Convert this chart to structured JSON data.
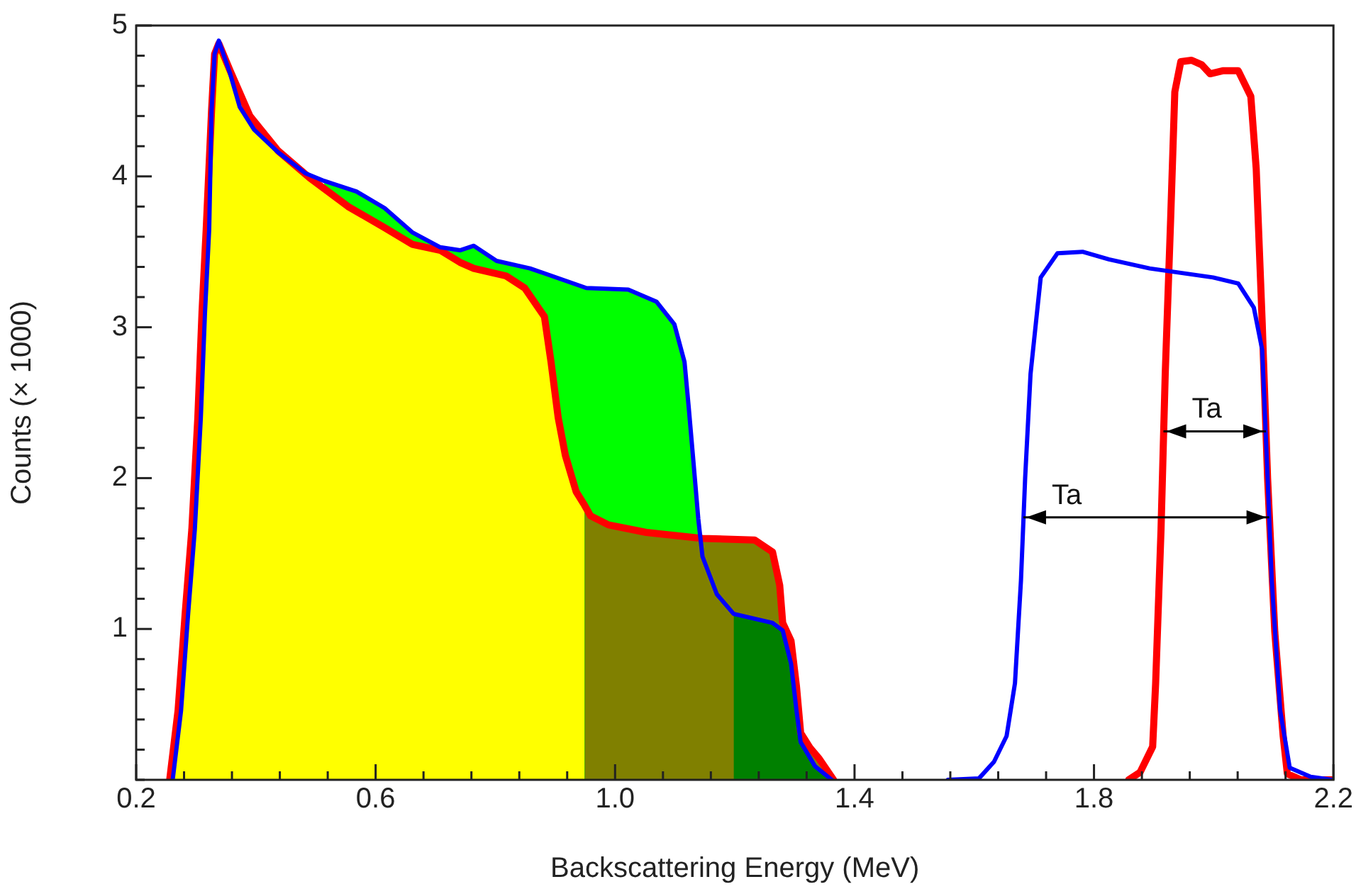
{
  "chart_data": {
    "type": "line",
    "xlabel": "Backscattering Energy (MeV)",
    "ylabel": "Counts (× 1000)",
    "xlim": [
      0.2,
      2.2
    ],
    "ylim": [
      0,
      5
    ],
    "xticks": [
      0.2,
      {
        "value": 0.28,
        "label": null
      },
      {
        "value": 0.36,
        "label": null
      },
      {
        "value": 0.44,
        "label": null
      },
      {
        "value": 0.52,
        "label": null
      },
      0.6,
      {
        "value": 0.68,
        "label": null
      },
      {
        "value": 0.76,
        "label": null
      },
      {
        "value": 0.84,
        "label": null
      },
      {
        "value": 0.92,
        "label": null
      },
      {
        "value": 1.0,
        "label": "1.0"
      },
      {
        "value": 1.08,
        "label": null
      },
      {
        "value": 1.16,
        "label": null
      },
      {
        "value": 1.24,
        "label": null
      },
      {
        "value": 1.32,
        "label": null
      },
      1.4,
      {
        "value": 1.48,
        "label": null
      },
      {
        "value": 1.56,
        "label": null
      },
      {
        "value": 1.64,
        "label": null
      },
      {
        "value": 1.72,
        "label": null
      },
      1.8,
      {
        "value": 1.88,
        "label": null
      },
      {
        "value": 1.96,
        "label": null
      },
      {
        "value": 2.04,
        "label": null
      },
      {
        "value": 2.12,
        "label": null
      },
      2.2
    ],
    "yticks": [
      {
        "value": 0,
        "label": null
      },
      {
        "value": 0.2,
        "label": null
      },
      {
        "value": 0.4,
        "label": null
      },
      {
        "value": 0.6,
        "label": null
      },
      {
        "value": 0.8,
        "label": null
      },
      1,
      {
        "value": 1.2,
        "label": null
      },
      {
        "value": 1.4,
        "label": null
      },
      {
        "value": 1.6,
        "label": null
      },
      {
        "value": 1.8,
        "label": null
      },
      2,
      {
        "value": 2.2,
        "label": null
      },
      {
        "value": 2.4,
        "label": null
      },
      {
        "value": 2.6,
        "label": null
      },
      {
        "value": 2.8,
        "label": null
      },
      3,
      {
        "value": 3.2,
        "label": null
      },
      {
        "value": 3.4,
        "label": null
      },
      {
        "value": 3.6,
        "label": null
      },
      {
        "value": 3.8,
        "label": null
      },
      4,
      {
        "value": 4.2,
        "label": null
      },
      {
        "value": 4.4,
        "label": null
      },
      {
        "value": 4.6,
        "label": null
      },
      {
        "value": 4.8,
        "label": null
      },
      5
    ],
    "grid": false,
    "legend": false,
    "marker": "none",
    "series": [
      {
        "type": "area",
        "color": "#00ff00",
        "x": [
          0.514,
          0.568,
          0.615,
          0.661,
          0.708,
          0.741,
          0.764,
          0.802,
          0.858,
          0.952,
          1.022,
          1.069,
          1.099,
          1.116,
          1.123,
          1.13,
          1.139
        ],
        "values": [
          3.97,
          3.9,
          3.79,
          3.63,
          3.53,
          3.51,
          3.54,
          3.44,
          3.39,
          3.26,
          3.25,
          3.17,
          3.02,
          2.77,
          2.47,
          2.15,
          1.73
        ]
      },
      {
        "type": "area",
        "color": "#ffff00",
        "x": [
          0.256,
          0.27,
          0.282,
          0.293,
          0.303,
          0.31,
          0.317,
          0.326,
          0.331,
          0.338,
          0.357,
          0.39,
          0.437,
          0.49,
          0.554,
          0.615,
          0.661,
          0.708,
          0.741,
          0.764,
          0.818,
          0.849,
          0.882,
          0.893,
          0.905,
          0.917,
          0.935,
          0.949
        ],
        "values": [
          0,
          0.46,
          1.11,
          1.66,
          2.4,
          3.1,
          3.65,
          4.44,
          4.81,
          4.88,
          4.7,
          4.4,
          4.17,
          3.99,
          3.8,
          3.66,
          3.55,
          3.51,
          3.43,
          3.39,
          3.34,
          3.26,
          3.07,
          2.77,
          2.4,
          2.15,
          1.91,
          1.82
        ]
      },
      {
        "type": "area",
        "color": "#808000",
        "x": [
          0.949,
          0.959,
          0.989,
          1.052,
          1.146,
          1.233,
          1.263,
          1.275,
          1.28,
          1.294,
          1.303,
          1.31,
          1.326,
          1.341,
          1.365
        ],
        "values": [
          1.82,
          1.75,
          1.69,
          1.64,
          1.6,
          1.59,
          1.51,
          1.29,
          1.04,
          0.92,
          0.62,
          0.31,
          0.21,
          0.14,
          0
        ]
      },
      {
        "type": "area",
        "color": "#008000",
        "x": [
          1.198,
          1.263,
          1.28,
          1.294,
          1.303,
          1.31,
          1.334,
          1.362
        ],
        "values": [
          1.1,
          1.04,
          0.99,
          0.77,
          0.46,
          0.25,
          0.09,
          0
        ]
      },
      {
        "type": "line",
        "color": "#ff0000",
        "x": [
          0.256,
          0.27,
          0.282,
          0.293,
          0.303,
          0.31,
          0.317,
          0.326,
          0.331,
          0.338,
          0.357,
          0.39,
          0.437,
          0.49,
          0.554,
          0.615,
          0.661,
          0.708,
          0.741,
          0.764,
          0.818,
          0.849,
          0.882,
          0.893,
          0.905,
          0.917,
          0.935,
          0.949,
          0.959,
          0.989,
          1.052,
          1.146,
          1.233,
          1.263,
          1.275,
          1.28,
          1.294,
          1.303,
          1.31,
          1.326,
          1.341,
          1.365,
          1.6,
          1.858,
          1.877,
          1.898,
          1.903,
          1.912,
          1.919,
          1.928,
          1.935,
          1.945,
          1.963,
          1.98,
          1.994,
          2.015,
          2.041,
          2.062,
          2.071,
          2.081,
          2.09,
          2.102,
          2.116,
          2.123,
          2.146,
          2.198
        ],
        "values": [
          0,
          0.46,
          1.11,
          1.66,
          2.4,
          3.1,
          3.65,
          4.44,
          4.81,
          4.88,
          4.7,
          4.4,
          4.17,
          3.99,
          3.8,
          3.66,
          3.55,
          3.51,
          3.43,
          3.39,
          3.34,
          3.26,
          3.07,
          2.77,
          2.4,
          2.15,
          1.91,
          1.82,
          1.75,
          1.69,
          1.64,
          1.6,
          1.59,
          1.51,
          1.29,
          1.04,
          0.92,
          0.62,
          0.31,
          0.21,
          0.14,
          0,
          null,
          0,
          0.05,
          0.22,
          0.64,
          1.66,
          2.69,
          3.71,
          4.56,
          4.76,
          4.77,
          4.74,
          4.68,
          4.7,
          4.7,
          4.53,
          4.05,
          3.03,
          2,
          0.98,
          0.29,
          0.04,
          0,
          0
        ]
      },
      {
        "type": "line",
        "color": "#0000ff",
        "x": [
          0.261,
          0.275,
          0.287,
          0.298,
          0.308,
          0.315,
          0.322,
          0.326,
          0.331,
          0.338,
          0.357,
          0.373,
          0.397,
          0.437,
          0.483,
          0.514,
          0.568,
          0.615,
          0.661,
          0.708,
          0.741,
          0.764,
          0.802,
          0.858,
          0.952,
          1.022,
          1.069,
          1.099,
          1.116,
          1.123,
          1.13,
          1.139,
          1.146,
          1.17,
          1.198,
          1.263,
          1.28,
          1.294,
          1.303,
          1.31,
          1.334,
          1.362,
          1.45,
          1.556,
          1.608,
          1.633,
          1.654,
          1.668,
          1.678,
          1.685,
          1.694,
          1.703,
          1.711,
          1.739,
          1.781,
          1.825,
          1.893,
          1.999,
          2.041,
          2.067,
          2.081,
          2.09,
          2.097,
          2.111,
          2.127,
          2.162,
          2.198
        ],
        "values": [
          0,
          0.46,
          1.11,
          1.66,
          2.4,
          3.1,
          3.65,
          4.44,
          4.81,
          4.9,
          4.68,
          4.46,
          4.31,
          4.16,
          4.02,
          3.97,
          3.9,
          3.79,
          3.63,
          3.53,
          3.51,
          3.54,
          3.44,
          3.39,
          3.26,
          3.25,
          3.17,
          3.02,
          2.77,
          2.47,
          2.15,
          1.73,
          1.48,
          1.23,
          1.1,
          1.04,
          0.99,
          0.77,
          0.46,
          0.25,
          0.09,
          0,
          null,
          0,
          0.01,
          0.12,
          0.29,
          0.64,
          1.32,
          2,
          2.69,
          3.03,
          3.33,
          3.49,
          3.5,
          3.45,
          3.39,
          3.33,
          3.29,
          3.13,
          2.85,
          2,
          1.32,
          0.46,
          0.08,
          0.02,
          0
        ]
      }
    ],
    "annotations": [
      {
        "text": "Ta",
        "x": 1.916,
        "y": 2.31
      },
      {
        "text": "Ta",
        "x": 1.682,
        "y": 1.74
      }
    ]
  }
}
